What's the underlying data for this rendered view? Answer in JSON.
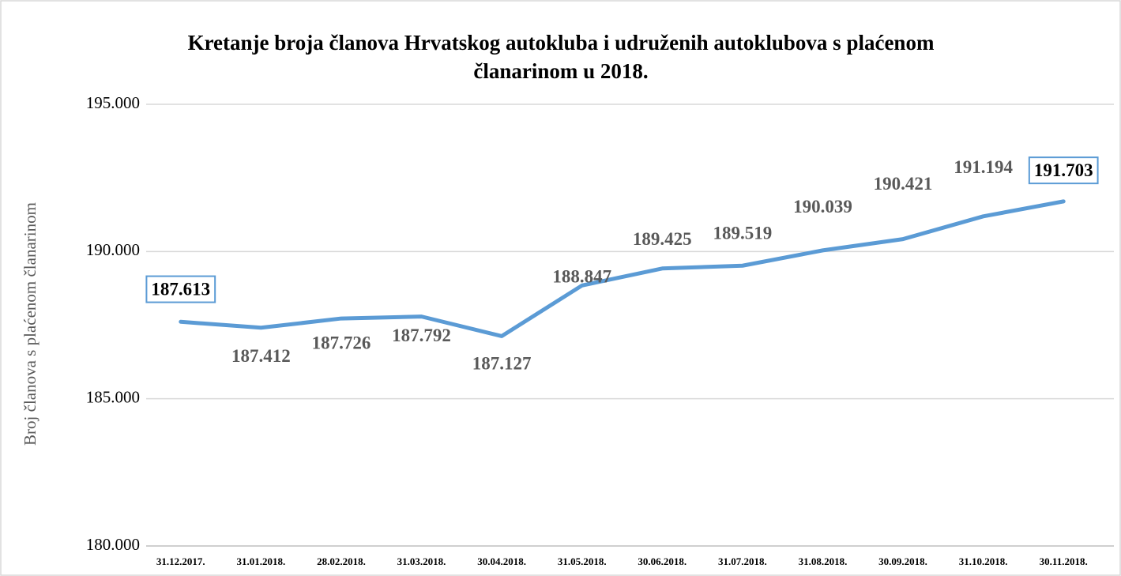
{
  "chart_data": {
    "type": "line",
    "title": [
      "Kretanje broja članova Hrvatskog autokluba i udruženih autoklubova s plaćenom",
      "članarinom u 2018."
    ],
    "y_label": "Broj članova s plaćenom članarinom",
    "categories": [
      "31.12.2017.",
      "31.01.2018.",
      "28.02.2018.",
      "31.03.2018.",
      "30.04.2018.",
      "31.05.2018.",
      "30.06.2018.",
      "31.07.2018.",
      "31.08.2018.",
      "30.09.2018.",
      "31.10.2018.",
      "30.11.2018."
    ],
    "series": [
      {
        "name": "Broj članova",
        "color": "#5b9bd5",
        "values": [
          187613,
          187412,
          187726,
          187792,
          187127,
          188847,
          189425,
          189519,
          190039,
          190421,
          191194,
          191703
        ],
        "value_labels": [
          "187.613",
          "187.412",
          "187.726",
          "187.792",
          "187.127",
          "188.847",
          "189.425",
          "189.519",
          "190.039",
          "190.421",
          "191.194",
          "191.703"
        ]
      }
    ],
    "ylim": [
      180000,
      195000
    ],
    "yticks": [
      {
        "value": 180000,
        "label": "180.000"
      },
      {
        "value": 185000,
        "label": "185.000"
      },
      {
        "value": 190000,
        "label": "190.000"
      },
      {
        "value": 195000,
        "label": "195.000"
      }
    ],
    "grid": true
  }
}
